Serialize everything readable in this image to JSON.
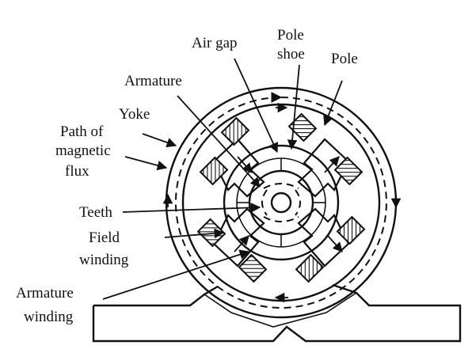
{
  "labels": {
    "air_gap": "Air gap",
    "pole_shoe_line1": "Pole",
    "pole_shoe_line2": "shoe",
    "pole": "Pole",
    "armature": "Armature",
    "yoke": "Yoke",
    "path_line1": "Path of",
    "path_line2": "magnetic",
    "path_line3": "flux",
    "teeth": "Teeth",
    "field_line1": "Field",
    "field_line2": "winding",
    "arm_winding_line1": "Armature",
    "arm_winding_line2": "winding"
  }
}
